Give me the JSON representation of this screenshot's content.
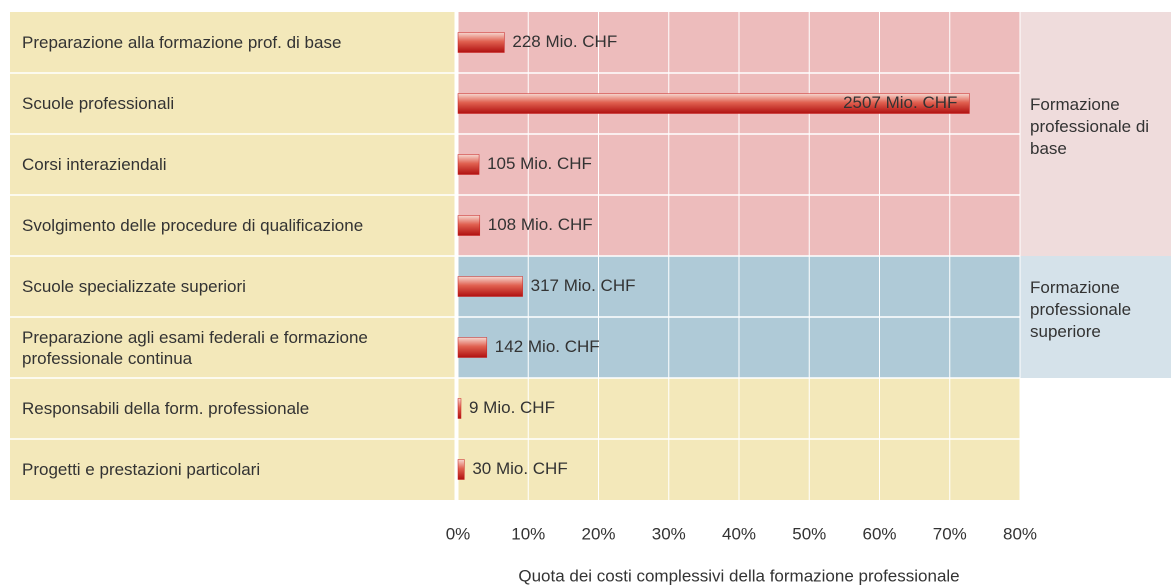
{
  "chart_data": {
    "type": "bar",
    "orientation": "horizontal",
    "xlabel": "Quota dei costi complessivi della formazione professionale",
    "categories": [
      "Preparazione alla formazione prof. di base",
      "Scuole professionali",
      "Corsi interaziendali",
      "Svolgimento delle procedure di qualificazione",
      "Scuole specializzate superiori",
      "Preparazione agli esami federali e formazione professionale continua",
      "Responsabili della form. professionale",
      "Progetti e prestazioni particolari"
    ],
    "values": [
      6.6,
      72.8,
      3.0,
      3.1,
      9.2,
      4.1,
      0.3,
      0.9
    ],
    "value_labels": [
      "228 Mio. CHF",
      "2507 Mio. CHF",
      "105 Mio. CHF",
      "108 Mio. CHF",
      "317 Mio. CHF",
      "142 Mio. CHF",
      "9 Mio. CHF",
      "30 Mio. CHF"
    ],
    "color": "#c8201e",
    "groups": [
      {
        "label": "Formazione professionale di base",
        "rows": [
          0,
          1,
          2,
          3
        ],
        "color": "#edbcbc",
        "label_color": "#efdcdc"
      },
      {
        "label": "Formazione professionale superiore",
        "rows": [
          4,
          5
        ],
        "color": "#afcad7",
        "label_color": "#d5e2ea"
      }
    ],
    "background": "#f3e8ba",
    "xlim": [
      0,
      80
    ],
    "xticks": [
      {
        "value": 0,
        "label": "0%"
      },
      {
        "value": 10,
        "label": "10%"
      },
      {
        "value": 20,
        "label": "20%"
      },
      {
        "value": 30,
        "label": "30%"
      },
      {
        "value": 40,
        "label": "40%"
      },
      {
        "value": 50,
        "label": "50%"
      },
      {
        "value": 60,
        "label": "60%"
      },
      {
        "value": 70,
        "label": "70%"
      },
      {
        "value": 80,
        "label": "80%"
      }
    ],
    "grid": true
  }
}
